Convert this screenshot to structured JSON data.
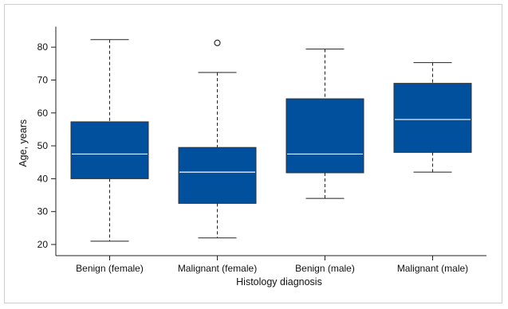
{
  "chart_data": {
    "type": "box",
    "title": "",
    "xlabel": "Histology diagnosis",
    "ylabel": "Age, years",
    "ylim": [
      20,
      85
    ],
    "yticks": [
      20,
      30,
      40,
      50,
      60,
      70,
      80
    ],
    "categories": [
      "Benign (female)",
      "Malignant (female)",
      "Benign (male)",
      "Malignant (male)"
    ],
    "boxes": [
      {
        "category": "Benign (female)",
        "whisker_low": 21,
        "q1": 40,
        "median": 47.5,
        "q3": 57.3,
        "whisker_high": 82.3,
        "outliers": []
      },
      {
        "category": "Malignant (female)",
        "whisker_low": 22,
        "q1": 32.5,
        "median": 42,
        "q3": 49.5,
        "whisker_high": 72.3,
        "outliers": [
          81.3
        ]
      },
      {
        "category": "Benign (male)",
        "whisker_low": 34,
        "q1": 41.8,
        "median": 47.5,
        "q3": 64.3,
        "whisker_high": 79.4,
        "outliers": []
      },
      {
        "category": "Malignant (male)",
        "whisker_low": 42,
        "q1": 48,
        "median": 58,
        "q3": 69,
        "whisker_high": 75.3,
        "outliers": []
      }
    ],
    "box_color": "#00509e",
    "median_color": "#ffffff",
    "grid": false,
    "legend": "none"
  }
}
